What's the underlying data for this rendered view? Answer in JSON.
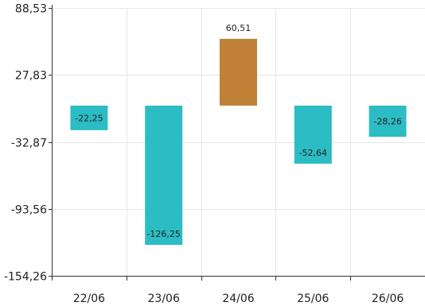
{
  "chart_data": {
    "type": "bar",
    "categories": [
      "22/06",
      "23/06",
      "24/06",
      "25/06",
      "26/06"
    ],
    "values": [
      -22.25,
      -126.25,
      60.51,
      -52.64,
      -28.26
    ],
    "value_labels": [
      "-22,25",
      "-126,25",
      "60,51",
      "-52,64",
      "-28,26"
    ],
    "y_ticks": [
      88.53,
      27.83,
      -32.87,
      -93.56,
      -154.26
    ],
    "y_tick_labels": [
      "88,53",
      "27,83",
      "-32,87",
      "-93,56",
      "-154,26"
    ],
    "ylim": [
      -154.26,
      88.53
    ],
    "grid": true,
    "title": "",
    "xlabel": "",
    "ylabel": "",
    "colors": {
      "negative": "#2bbdc3",
      "positive": "#c08035",
      "grid": "#e6e6e6",
      "axis": "#333333"
    }
  }
}
